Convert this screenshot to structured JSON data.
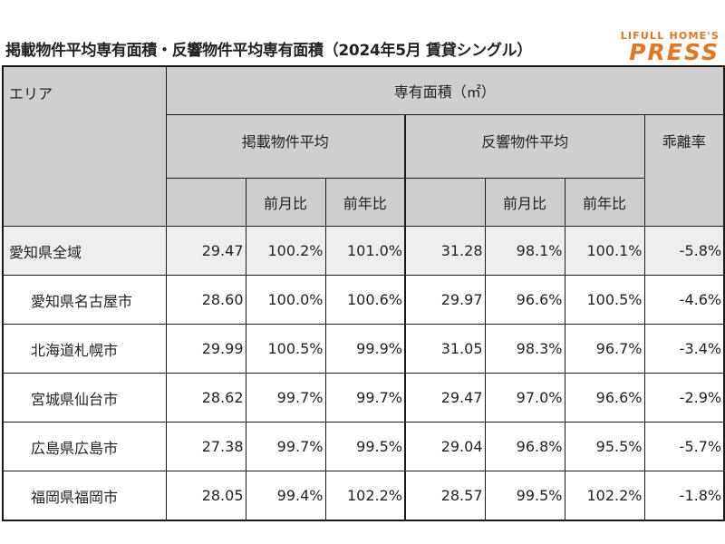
{
  "title": "掲載物件平均専有面積・反響物件平均専有面積（2024年5月 賃貸シングル）",
  "logo": {
    "top": "LIFULL HOME'S",
    "main": "PRESS"
  },
  "colors": {
    "logo": "#e8751a",
    "header_bg": "#cfcfcf",
    "first_row_bg": "#eeeeee"
  },
  "table": {
    "headers": {
      "area": "エリア",
      "group": "専有面積（㎡）",
      "listing": "掲載物件平均",
      "response": "反響物件平均",
      "divergence": "乖離率",
      "mom": "前月比",
      "yoy": "前年比"
    },
    "rows": [
      {
        "area": "愛知県全域",
        "listing": "29.47",
        "listing_mom": "100.2%",
        "listing_yoy": "101.0%",
        "response": "31.28",
        "response_mom": "98.1%",
        "response_yoy": "100.1%",
        "divergence": "-5.8%"
      },
      {
        "area": "愛知県名古屋市",
        "listing": "28.60",
        "listing_mom": "100.0%",
        "listing_yoy": "100.6%",
        "response": "29.97",
        "response_mom": "96.6%",
        "response_yoy": "100.5%",
        "divergence": "-4.6%"
      },
      {
        "area": "北海道札幌市",
        "listing": "29.99",
        "listing_mom": "100.5%",
        "listing_yoy": "99.9%",
        "response": "31.05",
        "response_mom": "98.3%",
        "response_yoy": "96.7%",
        "divergence": "-3.4%"
      },
      {
        "area": "宮城県仙台市",
        "listing": "28.62",
        "listing_mom": "99.7%",
        "listing_yoy": "99.7%",
        "response": "29.47",
        "response_mom": "97.0%",
        "response_yoy": "96.6%",
        "divergence": "-2.9%"
      },
      {
        "area": "広島県広島市",
        "listing": "27.38",
        "listing_mom": "99.7%",
        "listing_yoy": "99.5%",
        "response": "29.04",
        "response_mom": "96.8%",
        "response_yoy": "95.5%",
        "divergence": "-5.7%"
      },
      {
        "area": "福岡県福岡市",
        "listing": "28.05",
        "listing_mom": "99.4%",
        "listing_yoy": "102.2%",
        "response": "28.57",
        "response_mom": "99.5%",
        "response_yoy": "102.2%",
        "divergence": "-1.8%"
      }
    ]
  }
}
